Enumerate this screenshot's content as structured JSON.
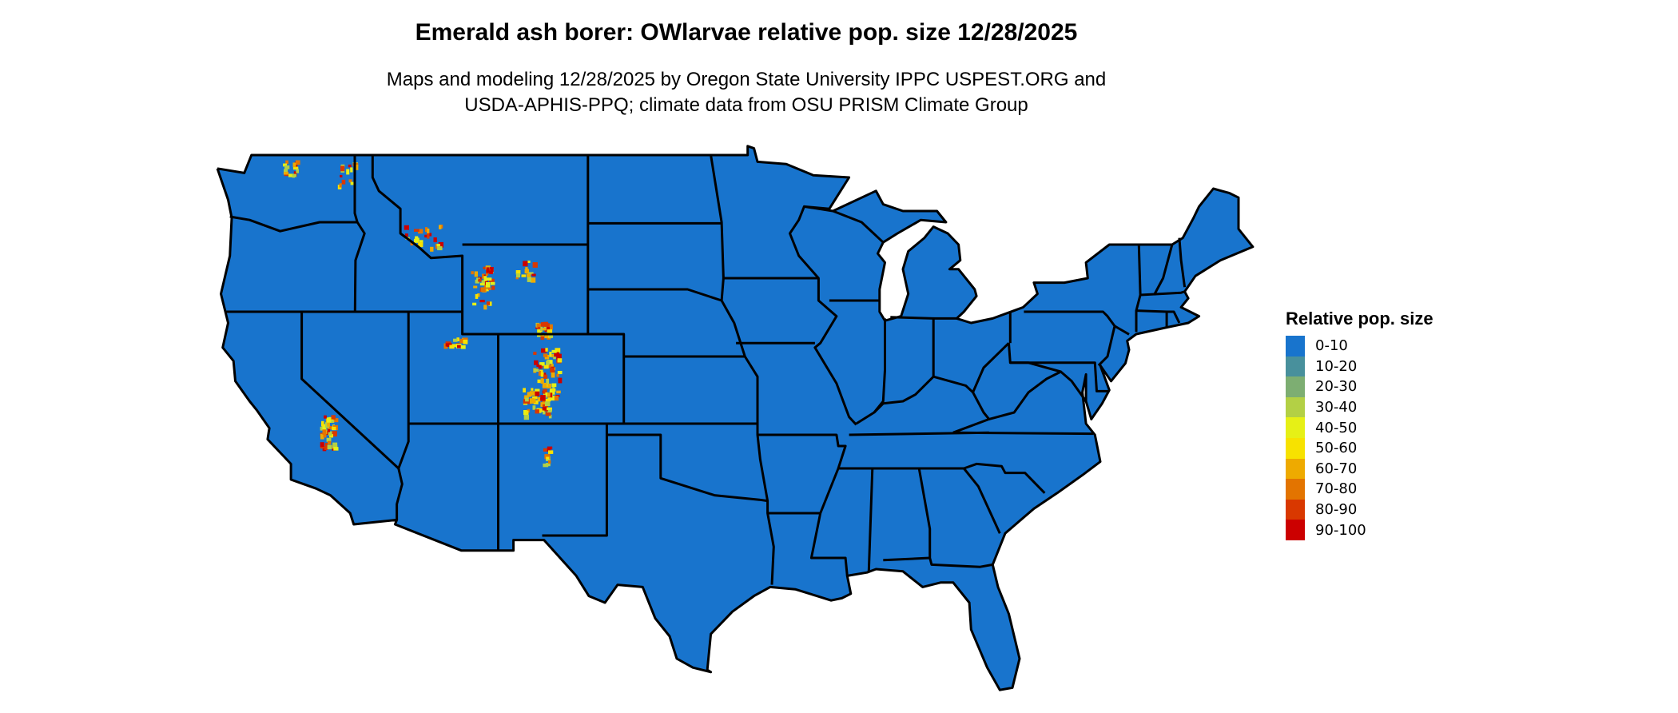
{
  "title": "Emerald ash borer: OWlarvae relative pop. size 12/28/2025",
  "subtitle_line1": "Maps and modeling 12/28/2025 by Oregon State University IPPC USPEST.ORG and",
  "subtitle_line2": "USDA-APHIS-PPQ; climate data from OSU PRISM Climate Group",
  "map": {
    "region": "Contiguous United States",
    "base_color": "#1874cd",
    "border_color": "#000000"
  },
  "legend": {
    "title": "Relative pop. size",
    "items": [
      {
        "label": "0-10",
        "color": "#1874cd"
      },
      {
        "label": "10-20",
        "color": "#48909c"
      },
      {
        "label": "20-30",
        "color": "#7dae72"
      },
      {
        "label": "30-40",
        "color": "#b3d045"
      },
      {
        "label": "40-50",
        "color": "#e6f016"
      },
      {
        "label": "50-60",
        "color": "#f7e200"
      },
      {
        "label": "60-70",
        "color": "#eeaa00"
      },
      {
        "label": "70-80",
        "color": "#e37400"
      },
      {
        "label": "80-90",
        "color": "#d93800"
      },
      {
        "label": "90-100",
        "color": "#cc0000"
      }
    ]
  }
}
